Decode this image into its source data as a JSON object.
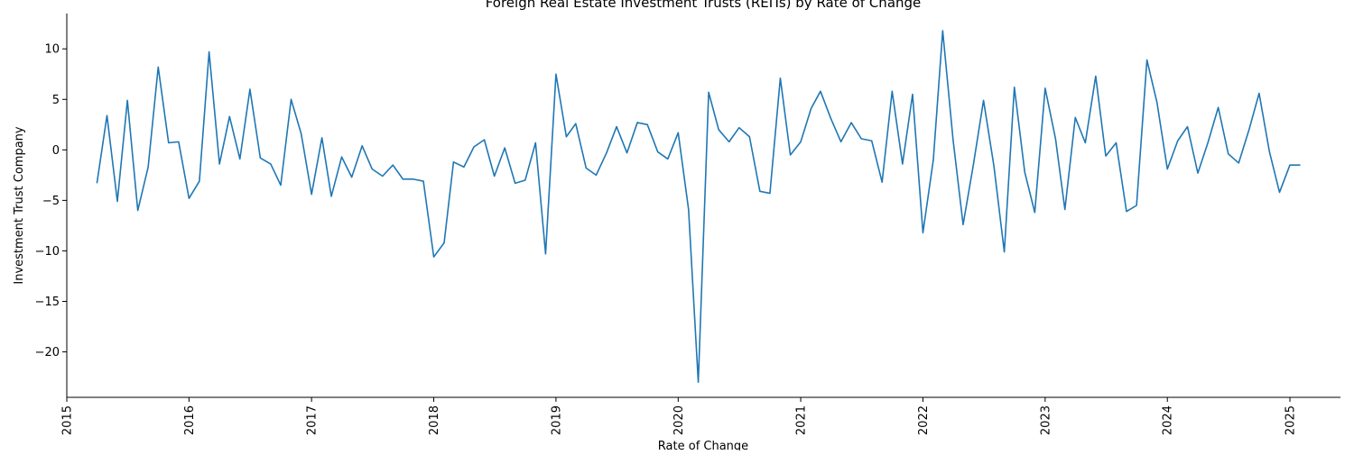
{
  "chart_data": {
    "type": "line",
    "title": "Foreign Real Estate Investment Trusts (REITs) by Rate of Change",
    "xlabel": "Rate of Change",
    "ylabel": "Investment Trust Company",
    "xlim": [
      "2015-01-01",
      "2025-06-01"
    ],
    "ylim": [
      -24.5,
      13.5
    ],
    "x_ticks": [
      "2015",
      "2016",
      "2017",
      "2018",
      "2019",
      "2020",
      "2021",
      "2022",
      "2023",
      "2024",
      "2025"
    ],
    "y_ticks": [
      10,
      5,
      0,
      -5,
      -10,
      -15,
      -20
    ],
    "grid": false,
    "series_color": "#1f77b4",
    "series": [
      {
        "x": [
          "2015-04",
          "2015-05",
          "2015-06",
          "2015-07",
          "2015-08",
          "2015-09",
          "2015-10",
          "2015-11",
          "2015-12",
          "2016-01",
          "2016-02",
          "2016-03",
          "2016-04",
          "2016-05",
          "2016-06",
          "2016-07",
          "2016-08",
          "2016-09",
          "2016-10",
          "2016-11",
          "2016-12",
          "2017-01",
          "2017-02",
          "2017-03",
          "2017-04",
          "2017-05",
          "2017-06",
          "2017-07",
          "2017-08",
          "2017-09",
          "2017-10",
          "2017-11",
          "2017-12",
          "2018-01",
          "2018-02",
          "2018-03",
          "2018-04",
          "2018-05",
          "2018-06",
          "2018-07",
          "2018-08",
          "2018-09",
          "2018-10",
          "2018-11",
          "2018-12",
          "2019-01",
          "2019-02",
          "2019-03",
          "2019-04",
          "2019-05",
          "2019-06",
          "2019-07",
          "2019-08",
          "2019-09",
          "2019-10",
          "2019-11",
          "2019-12",
          "2020-01",
          "2020-02",
          "2020-03",
          "2020-04",
          "2020-05",
          "2020-06",
          "2020-07",
          "2020-08",
          "2020-09",
          "2020-10",
          "2020-11",
          "2020-12",
          "2021-01",
          "2021-02",
          "2021-03",
          "2021-04",
          "2021-05",
          "2021-06",
          "2021-07",
          "2021-08",
          "2021-09",
          "2021-10",
          "2021-11",
          "2021-12",
          "2022-01",
          "2022-02",
          "2022-03",
          "2022-04",
          "2022-05",
          "2022-06",
          "2022-07",
          "2022-08",
          "2022-09",
          "2022-10",
          "2022-11",
          "2022-12",
          "2023-01",
          "2023-02",
          "2023-03",
          "2023-04",
          "2023-05",
          "2023-06",
          "2023-07",
          "2023-08",
          "2023-09",
          "2023-10",
          "2023-11",
          "2023-12",
          "2024-01",
          "2024-02",
          "2024-03",
          "2024-04",
          "2024-05",
          "2024-06",
          "2024-07",
          "2024-08",
          "2024-09",
          "2024-10",
          "2024-11",
          "2024-12",
          "2025-01",
          "2025-02"
        ],
        "values": [
          -3.3,
          3.4,
          -5.1,
          4.9,
          -6.0,
          -1.7,
          8.2,
          0.7,
          0.8,
          -4.8,
          -3.1,
          9.7,
          -1.4,
          3.3,
          -0.9,
          6.0,
          -0.8,
          -1.4,
          -3.5,
          5.0,
          1.6,
          -4.4,
          1.2,
          -4.6,
          -0.7,
          -2.7,
          0.4,
          -1.9,
          -2.6,
          -1.5,
          -2.9,
          -2.9,
          -3.1,
          -10.6,
          -9.2,
          -1.2,
          -1.7,
          0.3,
          1.0,
          -2.6,
          0.2,
          -3.3,
          -3.0,
          0.7,
          -10.3,
          7.5,
          1.3,
          2.6,
          -1.8,
          -2.5,
          -0.3,
          2.3,
          -0.3,
          2.7,
          2.5,
          -0.2,
          -0.9,
          1.7,
          -5.9,
          -23.0,
          5.7,
          2.0,
          0.8,
          2.2,
          1.3,
          -4.1,
          -4.3,
          7.1,
          -0.5,
          0.8,
          4.1,
          5.8,
          3.1,
          0.8,
          2.7,
          1.1,
          0.9,
          -3.2,
          5.8,
          -1.4,
          5.5,
          -8.2,
          -1.0,
          11.8,
          1.0,
          -7.4,
          -1.4,
          4.9,
          -1.6,
          -10.1,
          6.2,
          -2.2,
          -6.2,
          6.1,
          1.1,
          -5.9,
          3.2,
          0.7,
          7.3,
          -0.6,
          0.7,
          -6.1,
          -5.5,
          8.9,
          4.7,
          -1.9,
          0.9,
          2.3,
          -2.3,
          0.7,
          4.2,
          -0.4,
          -1.3,
          2.0,
          5.6,
          -0.2,
          -4.2,
          -1.5,
          -1.5
        ]
      }
    ]
  }
}
